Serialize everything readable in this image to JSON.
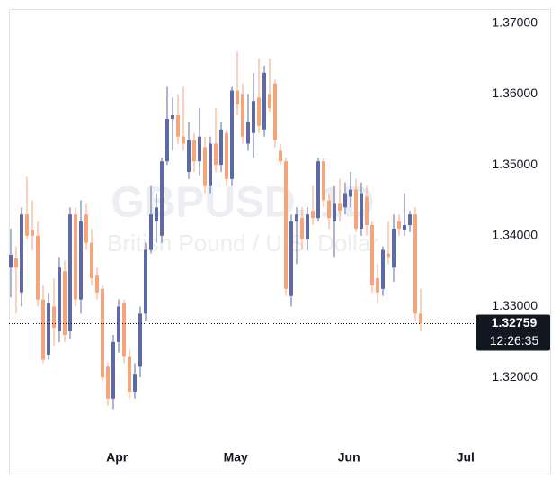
{
  "chart_data": {
    "type": "candlestick",
    "watermark": "GBPUSD, 1D",
    "subtitle": "British Pound / U.S. Dollar",
    "up_color": "#5d6aa6",
    "down_color": "#f5a57b",
    "open": [
      1.3355,
      1.3368,
      1.332,
      1.343,
      1.3408,
      1.34,
      1.331,
      1.3232,
      1.33,
      1.3265,
      1.335,
      1.3265,
      1.343,
      1.331,
      1.343,
      1.339,
      1.3345,
      1.3325,
      1.3215,
      1.317,
      1.325,
      1.3305,
      1.323,
      1.318,
      1.3215,
      1.329,
      1.338,
      1.342,
      1.34,
      1.3505,
      1.3565,
      1.357,
      1.354,
      1.349,
      1.3535,
      1.3505,
      1.3525,
      1.347,
      1.353,
      1.35,
      1.3545,
      1.348,
      1.3605,
      1.36,
      1.353,
      1.3545,
      1.3595,
      1.355,
      1.36,
      1.3615,
      1.352,
      1.3505,
      1.3315,
      1.342,
      1.3425,
      1.3395,
      1.3435,
      1.3425,
      1.3505,
      1.345,
      1.342,
      1.3445,
      1.344,
      1.3455,
      1.3465,
      1.341,
      1.3455,
      1.3415,
      1.334,
      1.3325,
      1.3375,
      1.3355,
      1.342,
      1.3408,
      1.3415,
      1.343,
      1.329
    ],
    "high": [
      1.341,
      1.3385,
      1.344,
      1.3483,
      1.345,
      1.342,
      1.333,
      1.332,
      1.334,
      1.337,
      1.3365,
      1.344,
      1.344,
      1.345,
      1.3445,
      1.341,
      1.3355,
      1.333,
      1.322,
      1.326,
      1.331,
      1.331,
      1.324,
      1.322,
      1.33,
      1.339,
      1.347,
      1.346,
      1.351,
      1.361,
      1.3595,
      1.36,
      1.361,
      1.356,
      1.3545,
      1.358,
      1.354,
      1.354,
      1.358,
      1.356,
      1.355,
      1.361,
      1.366,
      1.3615,
      1.36,
      1.363,
      1.365,
      1.364,
      1.365,
      1.362,
      1.353,
      1.351,
      1.343,
      1.344,
      1.344,
      1.344,
      1.347,
      1.351,
      1.351,
      1.346,
      1.347,
      1.348,
      1.3475,
      1.349,
      1.348,
      1.3475,
      1.347,
      1.342,
      1.336,
      1.3385,
      1.342,
      1.343,
      1.343,
      1.346,
      1.3435,
      1.344,
      1.3325
    ],
    "low": [
      1.3313,
      1.329,
      1.33,
      1.3395,
      1.338,
      1.33,
      1.322,
      1.3225,
      1.3245,
      1.325,
      1.325,
      1.3255,
      1.33,
      1.329,
      1.338,
      1.333,
      1.331,
      1.3195,
      1.316,
      1.3155,
      1.3235,
      1.322,
      1.317,
      1.317,
      1.32,
      1.328,
      1.3375,
      1.339,
      1.339,
      1.35,
      1.352,
      1.353,
      1.352,
      1.348,
      1.349,
      1.3485,
      1.346,
      1.346,
      1.349,
      1.349,
      1.347,
      1.347,
      1.357,
      1.353,
      1.352,
      1.351,
      1.3545,
      1.354,
      1.3575,
      1.3525,
      1.35,
      1.3315,
      1.33,
      1.336,
      1.338,
      1.338,
      1.3415,
      1.342,
      1.344,
      1.341,
      1.337,
      1.342,
      1.343,
      1.344,
      1.3405,
      1.34,
      1.34,
      1.332,
      1.3305,
      1.3315,
      1.336,
      1.3335,
      1.34,
      1.34,
      1.3405,
      1.328,
      1.3265
    ],
    "close": [
      1.3373,
      1.3355,
      1.343,
      1.34,
      1.34,
      1.331,
      1.3225,
      1.3305,
      1.327,
      1.3355,
      1.326,
      1.343,
      1.331,
      1.342,
      1.339,
      1.334,
      1.332,
      1.32,
      1.317,
      1.325,
      1.33,
      1.323,
      1.318,
      1.3205,
      1.329,
      1.338,
      1.343,
      1.344,
      1.3505,
      1.3565,
      1.357,
      1.354,
      1.353,
      1.3535,
      1.3505,
      1.354,
      1.347,
      1.353,
      1.35,
      1.355,
      1.348,
      1.3605,
      1.3585,
      1.354,
      1.356,
      1.359,
      1.3555,
      1.363,
      1.358,
      1.3535,
      1.3505,
      1.3325,
      1.342,
      1.343,
      1.3395,
      1.343,
      1.3425,
      1.3505,
      1.345,
      1.3425,
      1.3445,
      1.3435,
      1.346,
      1.3465,
      1.341,
      1.346,
      1.3415,
      1.333,
      1.332,
      1.338,
      1.337,
      1.341,
      1.341,
      1.3415,
      1.343,
      1.329,
      1.32759
    ],
    "last_price": 1.32759,
    "countdown": "12:26:35",
    "xlim": [
      -0.33,
      86.33
    ],
    "xticks": [
      {
        "value": 19.7,
        "label": "Apr"
      },
      {
        "value": 41.7,
        "label": "May"
      },
      {
        "value": 62.7,
        "label": "Jun"
      },
      {
        "value": 84.3,
        "label": "Jul"
      }
    ],
    "ylim": [
      1.311,
      1.372
    ],
    "yticks": [
      {
        "value": 1.32,
        "label": "1.32000"
      },
      {
        "value": 1.33,
        "label": "1.33000"
      },
      {
        "value": 1.34,
        "label": "1.34000"
      },
      {
        "value": 1.35,
        "label": "1.35000"
      },
      {
        "value": 1.36,
        "label": "1.36000"
      },
      {
        "value": 1.37,
        "label": "1.37000"
      }
    ]
  }
}
